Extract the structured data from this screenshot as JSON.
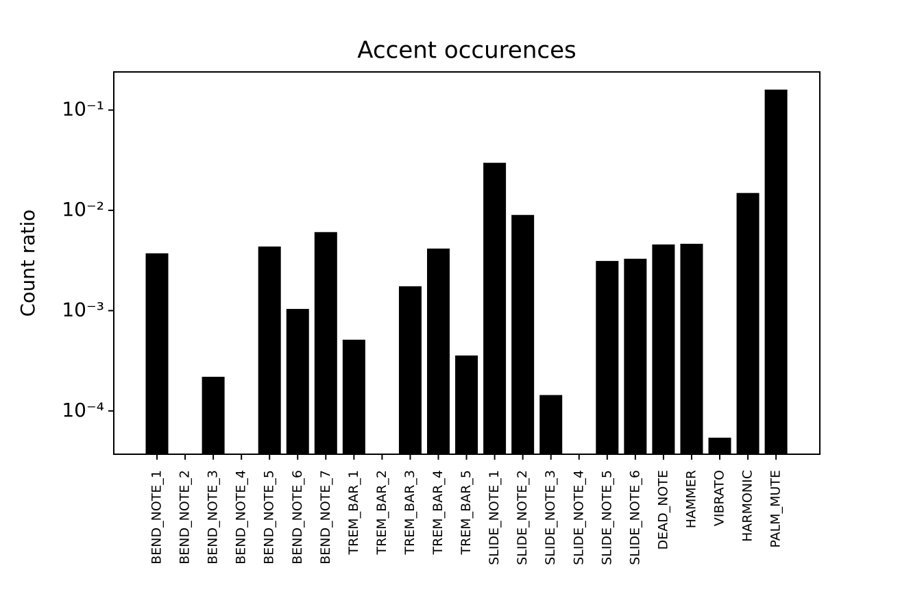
{
  "chart_data": {
    "type": "bar",
    "title": "Accent occurences",
    "y_label": "Count ratio",
    "categories": [
      "BEND_NOTE_1",
      "BEND_NOTE_2",
      "BEND_NOTE_3",
      "BEND_NOTE_4",
      "BEND_NOTE_5",
      "BEND_NOTE_6",
      "BEND_NOTE_7",
      "TREM_BAR_1",
      "TREM_BAR_2",
      "TREM_BAR_3",
      "TREM_BAR_4",
      "TREM_BAR_5",
      "SLIDE_NOTE_1",
      "SLIDE_NOTE_2",
      "SLIDE_NOTE_3",
      "SLIDE_NOTE_4",
      "SLIDE_NOTE_5",
      "SLIDE_NOTE_6",
      "DEAD_NOTE",
      "HAMMER",
      "VIBRATO",
      "HARMONIC",
      "PALM_MUTE"
    ],
    "values": [
      0.00373,
      0,
      0.000219,
      0,
      0.00436,
      0.00104,
      0.00607,
      0.000513,
      0,
      0.00175,
      0.00416,
      0.000357,
      0.0298,
      0.009,
      0.000144,
      0,
      0.00313,
      0.00329,
      0.00457,
      0.00464,
      5.41e-05,
      0.0149,
      0.16
    ],
    "color": "#000000",
    "yscale": "log",
    "ylim": [
      3.7e-05,
      0.24
    ],
    "yticks": [
      {
        "value": 0.0001,
        "label": "10⁻⁴"
      },
      {
        "value": 0.001,
        "label": "10⁻³"
      },
      {
        "value": 0.01,
        "label": "10⁻²"
      },
      {
        "value": 0.1,
        "label": "10⁻¹"
      }
    ]
  }
}
